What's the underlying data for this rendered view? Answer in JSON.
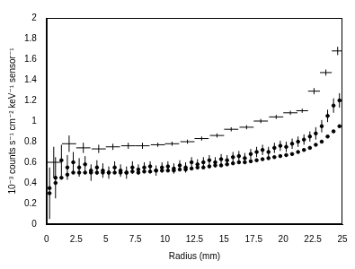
{
  "chart_data": {
    "type": "scatter",
    "x_label": "Radius (mm)",
    "y_label": "10⁻³ counts s⁻¹ cm⁻² keV⁻¹ sensor⁻¹",
    "xlim": [
      0,
      25
    ],
    "xticks": [
      0,
      2.5,
      5,
      7.5,
      10,
      12.5,
      15,
      17.5,
      20,
      22.5,
      25
    ],
    "ylim": [
      0,
      2
    ],
    "yticks": [
      0,
      0.2,
      0.4,
      0.6,
      0.8,
      1,
      1.2,
      1.4,
      1.6,
      1.8,
      2
    ],
    "grid": false,
    "series": [
      {
        "color": "#000000",
        "marker": "none",
        "x": [
          0.6,
          1.9,
          3.1,
          4.4,
          5.6,
          6.9,
          8.1,
          9.4,
          10.6,
          11.9,
          13.1,
          14.4,
          15.6,
          16.9,
          18.1,
          19.4,
          20.6,
          21.6,
          22.6,
          23.6,
          24.6
        ],
        "values": [
          0.6,
          0.78,
          0.74,
          0.73,
          0.75,
          0.76,
          0.76,
          0.77,
          0.78,
          0.8,
          0.83,
          0.86,
          0.92,
          0.94,
          1.0,
          1.04,
          1.08,
          1.1,
          1.29,
          1.47,
          1.68
        ],
        "x_errors": [
          0.6,
          0.6,
          0.6,
          0.6,
          0.6,
          0.6,
          0.6,
          0.6,
          0.6,
          0.6,
          0.6,
          0.6,
          0.6,
          0.6,
          0.6,
          0.6,
          0.6,
          0.5,
          0.5,
          0.5,
          0.5
        ],
        "y_errors": [
          0.15,
          0.08,
          0.05,
          0.04,
          0.03,
          0.03,
          0.03,
          0.02,
          0.02,
          0.02,
          0.02,
          0.02,
          0.02,
          0.02,
          0.02,
          0.02,
          0.02,
          0.02,
          0.03,
          0.03,
          0.04
        ]
      },
      {
        "color": "#000000",
        "marker": "circle",
        "x": [
          0.25,
          0.75,
          1.25,
          1.75,
          2.25,
          2.75,
          3.25,
          3.75,
          4.25,
          4.75,
          5.25,
          5.75,
          6.25,
          6.75,
          7.25,
          7.75,
          8.25,
          8.75,
          9.25,
          9.75,
          10.25,
          10.75,
          11.25,
          11.75,
          12.25,
          12.75,
          13.25,
          13.75,
          14.25,
          14.75,
          15.25,
          15.75,
          16.25,
          16.75,
          17.25,
          17.75,
          18.25,
          18.75,
          19.25,
          19.75,
          20.25,
          20.75,
          21.25,
          21.75,
          22.25,
          22.75,
          23.25,
          23.75,
          24.25,
          24.75
        ],
        "values": [
          0.3,
          0.45,
          0.62,
          0.55,
          0.6,
          0.55,
          0.58,
          0.5,
          0.55,
          0.52,
          0.5,
          0.55,
          0.52,
          0.5,
          0.55,
          0.53,
          0.55,
          0.56,
          0.52,
          0.55,
          0.56,
          0.54,
          0.57,
          0.55,
          0.6,
          0.58,
          0.6,
          0.62,
          0.6,
          0.63,
          0.62,
          0.65,
          0.66,
          0.64,
          0.68,
          0.7,
          0.72,
          0.7,
          0.74,
          0.76,
          0.75,
          0.78,
          0.8,
          0.82,
          0.85,
          0.88,
          0.95,
          1.05,
          1.15,
          1.2
        ],
        "x_errors": [
          0.125,
          0.125,
          0.125,
          0.125,
          0.125,
          0.125,
          0.125,
          0.125,
          0.125,
          0.125,
          0.125,
          0.125,
          0.125,
          0.125,
          0.125,
          0.125,
          0.125,
          0.125,
          0.125,
          0.125,
          0.125,
          0.125,
          0.125,
          0.125,
          0.125,
          0.125,
          0.125,
          0.125,
          0.125,
          0.125,
          0.125,
          0.125,
          0.125,
          0.125,
          0.125,
          0.125,
          0.125,
          0.125,
          0.125,
          0.125,
          0.125,
          0.125,
          0.125,
          0.125,
          0.125,
          0.125,
          0.125,
          0.125,
          0.125,
          0.125
        ],
        "y_errors": [
          0.25,
          0.2,
          0.15,
          0.12,
          0.1,
          0.09,
          0.08,
          0.08,
          0.07,
          0.07,
          0.06,
          0.06,
          0.06,
          0.06,
          0.06,
          0.05,
          0.05,
          0.05,
          0.05,
          0.05,
          0.05,
          0.05,
          0.05,
          0.05,
          0.05,
          0.05,
          0.05,
          0.05,
          0.05,
          0.05,
          0.05,
          0.05,
          0.05,
          0.05,
          0.05,
          0.05,
          0.05,
          0.05,
          0.05,
          0.05,
          0.05,
          0.05,
          0.05,
          0.05,
          0.05,
          0.06,
          0.06,
          0.06,
          0.07,
          0.07
        ]
      },
      {
        "color": "#000000",
        "marker": "circle",
        "x": [
          0.25,
          0.75,
          1.25,
          1.75,
          2.25,
          2.75,
          3.25,
          3.75,
          4.25,
          4.75,
          5.25,
          5.75,
          6.25,
          6.75,
          7.25,
          7.75,
          8.25,
          8.75,
          9.25,
          9.75,
          10.25,
          10.75,
          11.25,
          11.75,
          12.25,
          12.75,
          13.25,
          13.75,
          14.25,
          14.75,
          15.25,
          15.75,
          16.25,
          16.75,
          17.25,
          17.75,
          18.25,
          18.75,
          19.25,
          19.75,
          20.25,
          20.75,
          21.25,
          21.75,
          22.25,
          22.75,
          23.25,
          23.75,
          24.25,
          24.75
        ],
        "values": [
          0.35,
          0.4,
          0.45,
          0.48,
          0.5,
          0.5,
          0.5,
          0.52,
          0.5,
          0.5,
          0.5,
          0.5,
          0.5,
          0.5,
          0.51,
          0.5,
          0.51,
          0.51,
          0.52,
          0.52,
          0.52,
          0.52,
          0.53,
          0.53,
          0.54,
          0.55,
          0.55,
          0.56,
          0.57,
          0.57,
          0.58,
          0.59,
          0.6,
          0.6,
          0.61,
          0.62,
          0.63,
          0.64,
          0.65,
          0.66,
          0.67,
          0.68,
          0.7,
          0.72,
          0.74,
          0.77,
          0.8,
          0.85,
          0.9,
          0.95
        ]
      }
    ]
  }
}
